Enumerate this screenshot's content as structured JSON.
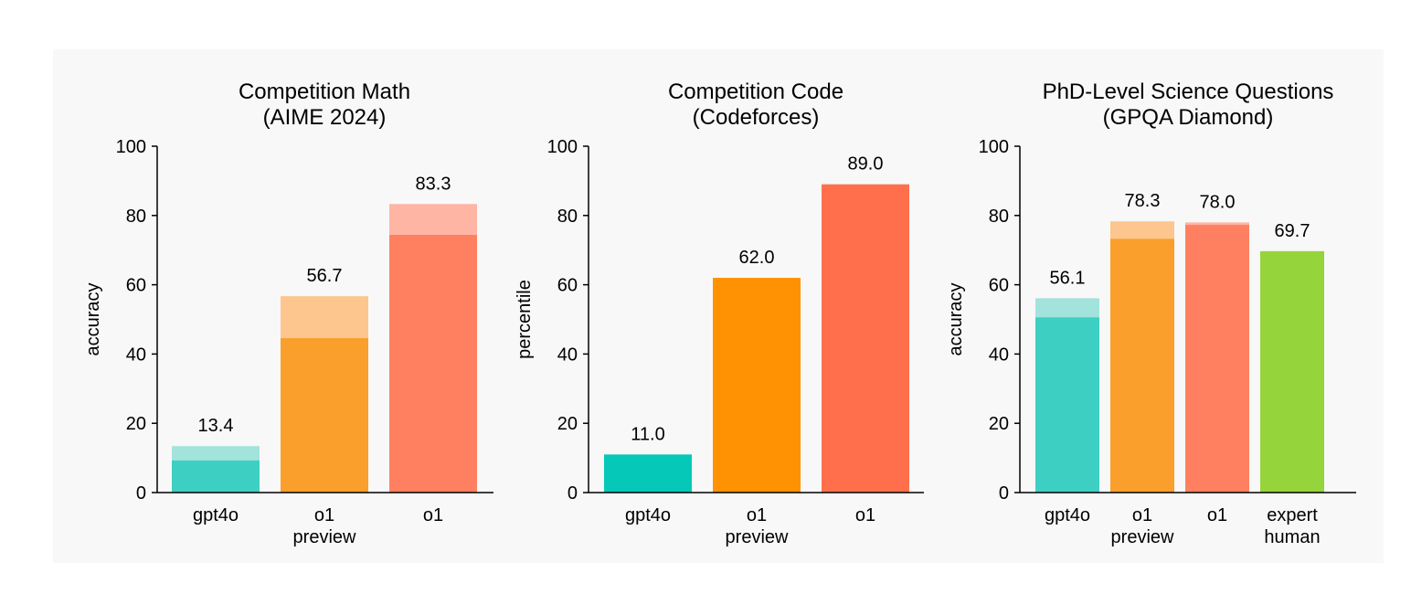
{
  "chart_data": [
    {
      "type": "bar",
      "title": [
        "Competition Math",
        "(AIME 2024)"
      ],
      "ylabel": "accuracy",
      "ylim": [
        0,
        100
      ],
      "yticks": [
        0,
        20,
        40,
        60,
        80,
        100
      ],
      "categories": [
        [
          "gpt4o"
        ],
        [
          "o1",
          "preview"
        ],
        [
          "o1"
        ]
      ],
      "values": [
        13.4,
        56.7,
        83.3
      ],
      "base_values": [
        9.3,
        44.6,
        74.4
      ],
      "value_labels": [
        "13.4",
        "56.7",
        "83.3"
      ],
      "colors": [
        "#3ecfc3",
        "#fa9f2c",
        "#ff8060"
      ],
      "light_colors": [
        "#a2e3dc",
        "#fdc68e",
        "#ffb5a4"
      ]
    },
    {
      "type": "bar",
      "title": [
        "Competition Code",
        "(Codeforces)"
      ],
      "ylabel": "percentile",
      "ylim": [
        0,
        100
      ],
      "yticks": [
        0,
        20,
        40,
        60,
        80,
        100
      ],
      "categories": [
        [
          "gpt4o"
        ],
        [
          "o1",
          "preview"
        ],
        [
          "o1"
        ]
      ],
      "values": [
        11.0,
        62.0,
        89.0
      ],
      "base_values": [
        11.0,
        62.0,
        89.0
      ],
      "value_labels": [
        "11.0",
        "62.0",
        "89.0"
      ],
      "colors": [
        "#06c8b8",
        "#fe9203",
        "#ff6f4c"
      ],
      "light_colors": [
        "#06c8b8",
        "#fe9203",
        "#ff6f4c"
      ]
    },
    {
      "type": "bar",
      "title": [
        "PhD-Level Science Questions",
        "(GPQA Diamond)"
      ],
      "ylabel": "accuracy",
      "ylim": [
        0,
        100
      ],
      "yticks": [
        0,
        20,
        40,
        60,
        80,
        100
      ],
      "categories": [
        [
          "gpt4o"
        ],
        [
          "o1",
          "preview"
        ],
        [
          "o1"
        ],
        [
          "expert",
          "human"
        ]
      ],
      "values": [
        56.1,
        78.3,
        78.0,
        69.7
      ],
      "base_values": [
        50.6,
        73.3,
        77.3,
        69.7
      ],
      "value_labels": [
        "56.1",
        "78.3",
        "78.0",
        "69.7"
      ],
      "colors": [
        "#3ecfc3",
        "#fa9f2c",
        "#ff8060",
        "#96d43c"
      ],
      "light_colors": [
        "#a2e3dc",
        "#fdc68e",
        "#ffb5a4",
        "#96d43c"
      ]
    }
  ]
}
